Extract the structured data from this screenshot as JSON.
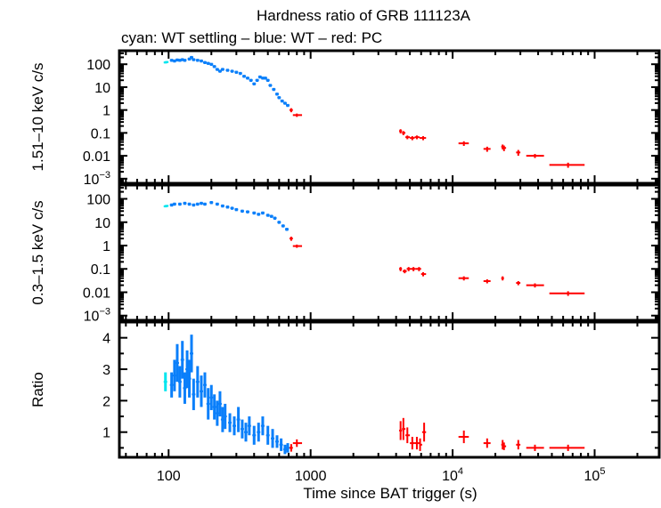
{
  "chart_data": {
    "type": "scatter",
    "title": "Hardness ratio of GRB 111123A",
    "subtitle": "cyan: WT settling – blue: WT – red: PC",
    "xlabel": "Time since BAT trigger (s)",
    "xscale": "log",
    "xlim": [
      45,
      285000
    ],
    "xticks": [
      {
        "v": 100,
        "label": "100"
      },
      {
        "v": 1000,
        "label": "1000"
      },
      {
        "v": 10000,
        "label": "10^4"
      },
      {
        "v": 100000,
        "label": "10^5"
      }
    ],
    "colors": {
      "wt_settling": "#00e5ee",
      "wt": "#0a7ffa",
      "pc": "#ff0000"
    },
    "panels": [
      {
        "ylabel": "1.51–10 keV c/s",
        "yscale": "log",
        "ylim": [
          0.00063,
          390
        ],
        "yticks": [
          {
            "v": 100,
            "label": "100"
          },
          {
            "v": 10,
            "label": "10"
          },
          {
            "v": 1,
            "label": "1"
          },
          {
            "v": 0.1,
            "label": "0.1"
          },
          {
            "v": 0.01,
            "label": "0.01"
          },
          {
            "v": 0.001,
            "label": "10^-3"
          }
        ],
        "series": [
          {
            "mode": "wt_settling",
            "yerr_frac": 0.1,
            "points": [
              [
                95,
                120
              ],
              [
                97,
                125
              ]
            ]
          },
          {
            "mode": "wt",
            "yerr_frac": 0.15,
            "points": [
              [
                105,
                150
              ],
              [
                110,
                140
              ],
              [
                115,
                155
              ],
              [
                120,
                150
              ],
              [
                125,
                160
              ],
              [
                130,
                150
              ],
              [
                140,
                170
              ],
              [
                145,
                200
              ],
              [
                150,
                160
              ],
              [
                160,
                150
              ],
              [
                170,
                140
              ],
              [
                180,
                120
              ],
              [
                190,
                110
              ],
              [
                200,
                100
              ],
              [
                210,
                80
              ],
              [
                220,
                60
              ],
              [
                230,
                50
              ],
              [
                240,
                60
              ],
              [
                260,
                55
              ],
              [
                280,
                50
              ],
              [
                300,
                45
              ],
              [
                320,
                40
              ],
              [
                340,
                30
              ],
              [
                360,
                25
              ],
              [
                380,
                20
              ],
              [
                400,
                14
              ],
              [
                420,
                20
              ],
              [
                440,
                28
              ],
              [
                460,
                25
              ],
              [
                480,
                25
              ],
              [
                500,
                20
              ],
              [
                520,
                12
              ],
              [
                550,
                8
              ],
              [
                580,
                5
              ],
              [
                600,
                3.5
              ],
              [
                630,
                2.5
              ],
              [
                660,
                2
              ],
              [
                690,
                1.6
              ]
            ]
          },
          {
            "mode": "pc",
            "points": [
              [
                730,
                1.0,
                710,
                750,
                0.2
              ],
              [
                800,
                0.6,
                750,
                870,
                0.1
              ],
              [
                4300,
                0.12,
                4200,
                4400,
                0.025
              ],
              [
                4500,
                0.1,
                4400,
                4650,
                0.02
              ],
              [
                4800,
                0.065,
                4650,
                5000,
                0.012
              ],
              [
                5200,
                0.06,
                5000,
                5400,
                0.012
              ],
              [
                5600,
                0.065,
                5400,
                5850,
                0.012
              ],
              [
                6200,
                0.06,
                5850,
                6500,
                0.012
              ],
              [
                12000,
                0.035,
                11000,
                13000,
                0.008
              ],
              [
                17500,
                0.02,
                16500,
                18500,
                0.005
              ],
              [
                22500,
                0.025,
                22000,
                23000,
                0.006
              ],
              [
                23000,
                0.022,
                22800,
                23800,
                0.006
              ],
              [
                29000,
                0.014,
                28000,
                30000,
                0.004
              ],
              [
                38000,
                0.01,
                33000,
                44000,
                0.002
              ],
              [
                65000,
                0.004,
                48000,
                85000,
                0.001
              ]
            ]
          }
        ]
      },
      {
        "ylabel": "0.3–1.5 keV c/s",
        "yscale": "log",
        "ylim": [
          0.00063,
          390
        ],
        "yticks": [
          {
            "v": 100,
            "label": "100"
          },
          {
            "v": 10,
            "label": "10"
          },
          {
            "v": 1,
            "label": "1"
          },
          {
            "v": 0.1,
            "label": "0.1"
          },
          {
            "v": 0.01,
            "label": "0.01"
          },
          {
            "v": 0.001,
            "label": "10^-3"
          }
        ],
        "series": [
          {
            "mode": "wt_settling",
            "yerr_frac": 0.1,
            "points": [
              [
                95,
                48
              ],
              [
                97,
                50
              ]
            ]
          },
          {
            "mode": "wt",
            "yerr_frac": 0.15,
            "points": [
              [
                105,
                55
              ],
              [
                110,
                60
              ],
              [
                120,
                60
              ],
              [
                130,
                65
              ],
              [
                140,
                60
              ],
              [
                150,
                55
              ],
              [
                160,
                60
              ],
              [
                170,
                65
              ],
              [
                180,
                60
              ],
              [
                200,
                70
              ],
              [
                220,
                60
              ],
              [
                240,
                50
              ],
              [
                260,
                45
              ],
              [
                280,
                40
              ],
              [
                300,
                35
              ],
              [
                330,
                30
              ],
              [
                360,
                28
              ],
              [
                400,
                25
              ],
              [
                430,
                22
              ],
              [
                460,
                25
              ],
              [
                500,
                20
              ],
              [
                530,
                18
              ],
              [
                560,
                15
              ],
              [
                600,
                10
              ],
              [
                640,
                7
              ],
              [
                680,
                5
              ]
            ]
          },
          {
            "mode": "pc",
            "points": [
              [
                730,
                2.0,
                710,
                750,
                0.4
              ],
              [
                800,
                0.95,
                750,
                870,
                0.15
              ],
              [
                4300,
                0.1,
                4200,
                4400,
                0.02
              ],
              [
                4600,
                0.08,
                4450,
                4750,
                0.015
              ],
              [
                4900,
                0.1,
                4750,
                5100,
                0.02
              ],
              [
                5300,
                0.1,
                5100,
                5500,
                0.02
              ],
              [
                5800,
                0.1,
                5500,
                6000,
                0.02
              ],
              [
                6200,
                0.06,
                6000,
                6500,
                0.012
              ],
              [
                12000,
                0.04,
                11000,
                13000,
                0.008
              ],
              [
                17500,
                0.03,
                16500,
                18500,
                0.006
              ],
              [
                22500,
                0.04,
                22000,
                23000,
                0.008
              ],
              [
                29000,
                0.025,
                28000,
                30000,
                0.005
              ],
              [
                38000,
                0.02,
                33000,
                44000,
                0.004
              ],
              [
                65000,
                0.009,
                48000,
                85000,
                0.002
              ]
            ]
          }
        ]
      },
      {
        "ylabel": "Ratio",
        "yscale": "linear",
        "ylim": [
          0.2,
          4.5
        ],
        "yticks": [
          {
            "v": 1,
            "label": "1"
          },
          {
            "v": 2,
            "label": "2"
          },
          {
            "v": 3,
            "label": "3"
          },
          {
            "v": 4,
            "label": "4"
          }
        ],
        "series": [
          {
            "mode": "wt_settling",
            "points": [
              [
                95,
                2.6,
                0.3
              ]
            ]
          },
          {
            "mode": "wt",
            "points": [
              [
                105,
                2.5,
                0.4
              ],
              [
                110,
                2.8,
                0.5
              ],
              [
                115,
                3.2,
                0.6
              ],
              [
                120,
                2.6,
                0.5
              ],
              [
                125,
                3.3,
                0.6
              ],
              [
                130,
                2.4,
                0.5
              ],
              [
                135,
                3.0,
                0.6
              ],
              [
                140,
                2.7,
                0.6
              ],
              [
                145,
                3.5,
                0.6
              ],
              [
                150,
                2.2,
                0.5
              ],
              [
                160,
                2.6,
                0.5
              ],
              [
                170,
                2.3,
                0.5
              ],
              [
                180,
                2.5,
                0.4
              ],
              [
                190,
                1.9,
                0.5
              ],
              [
                200,
                2.1,
                0.4
              ],
              [
                210,
                1.8,
                0.4
              ],
              [
                220,
                1.6,
                0.4
              ],
              [
                230,
                1.9,
                0.4
              ],
              [
                240,
                1.4,
                0.4
              ],
              [
                250,
                1.5,
                0.4
              ],
              [
                270,
                1.3,
                0.3
              ],
              [
                290,
                1.2,
                0.3
              ],
              [
                310,
                1.4,
                0.4
              ],
              [
                330,
                1.1,
                0.3
              ],
              [
                350,
                1.0,
                0.3
              ],
              [
                370,
                1.2,
                0.3
              ],
              [
                400,
                0.9,
                0.3
              ],
              [
                430,
                1.0,
                0.3
              ],
              [
                460,
                1.2,
                0.3
              ],
              [
                500,
                0.9,
                0.3
              ],
              [
                540,
                0.8,
                0.3
              ],
              [
                580,
                0.7,
                0.2
              ],
              [
                620,
                0.6,
                0.2
              ],
              [
                660,
                0.45,
                0.15
              ],
              [
                690,
                0.5,
                0.15
              ]
            ]
          },
          {
            "mode": "pc",
            "points": [
              [
                730,
                0.5,
                710,
                750,
                0.12
              ],
              [
                800,
                0.65,
                750,
                870,
                0.12
              ],
              [
                4300,
                1.05,
                4200,
                4400,
                0.3
              ],
              [
                4500,
                1.1,
                4400,
                4650,
                0.35
              ],
              [
                4800,
                0.9,
                4650,
                5000,
                0.25
              ],
              [
                5200,
                0.65,
                5000,
                5400,
                0.2
              ],
              [
                5600,
                0.65,
                5400,
                5850,
                0.2
              ],
              [
                5900,
                0.6,
                5850,
                6100,
                0.2
              ],
              [
                6300,
                1.0,
                6100,
                6500,
                0.3
              ],
              [
                12000,
                0.85,
                11000,
                13000,
                0.2
              ],
              [
                17500,
                0.65,
                16500,
                18500,
                0.15
              ],
              [
                22500,
                0.6,
                22000,
                23000,
                0.15
              ],
              [
                23000,
                0.55,
                22800,
                23800,
                0.12
              ],
              [
                29000,
                0.6,
                28000,
                30000,
                0.15
              ],
              [
                38000,
                0.5,
                33000,
                44000,
                0.1
              ],
              [
                65000,
                0.5,
                48000,
                85000,
                0.1
              ]
            ]
          }
        ]
      }
    ]
  }
}
